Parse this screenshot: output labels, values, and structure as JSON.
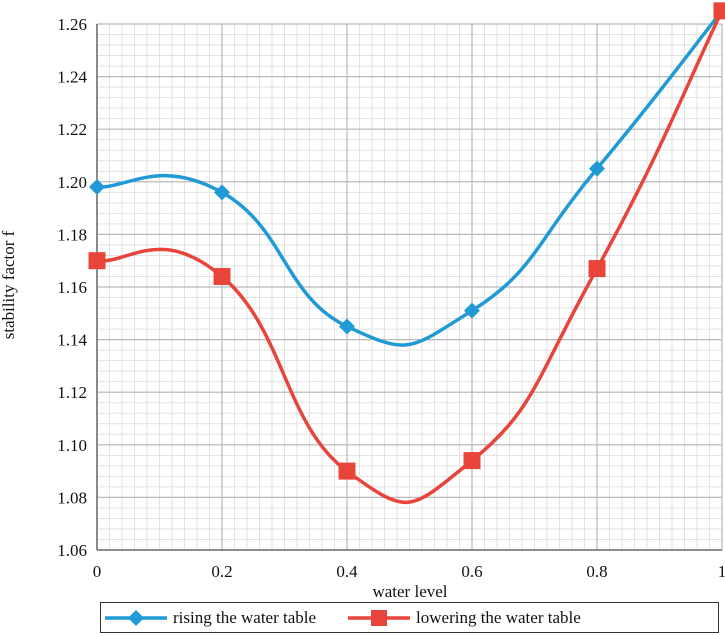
{
  "chart_data": {
    "type": "line",
    "xlabel": "water level",
    "ylabel": "stability factor f",
    "xlim": [
      0,
      1
    ],
    "ylim": [
      1.06,
      1.26
    ],
    "x_ticks": [
      "0",
      "0.2",
      "0.4",
      "0.6",
      "0.8",
      "1"
    ],
    "y_ticks": [
      "1.06",
      "1.08",
      "1.10",
      "1.12",
      "1.14",
      "1.16",
      "1.18",
      "1.20",
      "1.22",
      "1.24",
      "1.26"
    ],
    "grid": true,
    "legend_position": "bottom",
    "series": [
      {
        "name": "rising the water table",
        "color": "#1f9ad6",
        "marker": "diamond",
        "x": [
          0,
          0.2,
          0.4,
          0.6,
          0.8,
          1
        ],
        "y": [
          1.198,
          1.196,
          1.145,
          1.151,
          1.205,
          1.265
        ]
      },
      {
        "name": "lowering the water table",
        "color": "#e8443a",
        "marker": "square",
        "x": [
          0,
          0.2,
          0.4,
          0.6,
          0.8,
          1
        ],
        "y": [
          1.17,
          1.164,
          1.09,
          1.094,
          1.167,
          1.265
        ]
      }
    ]
  }
}
